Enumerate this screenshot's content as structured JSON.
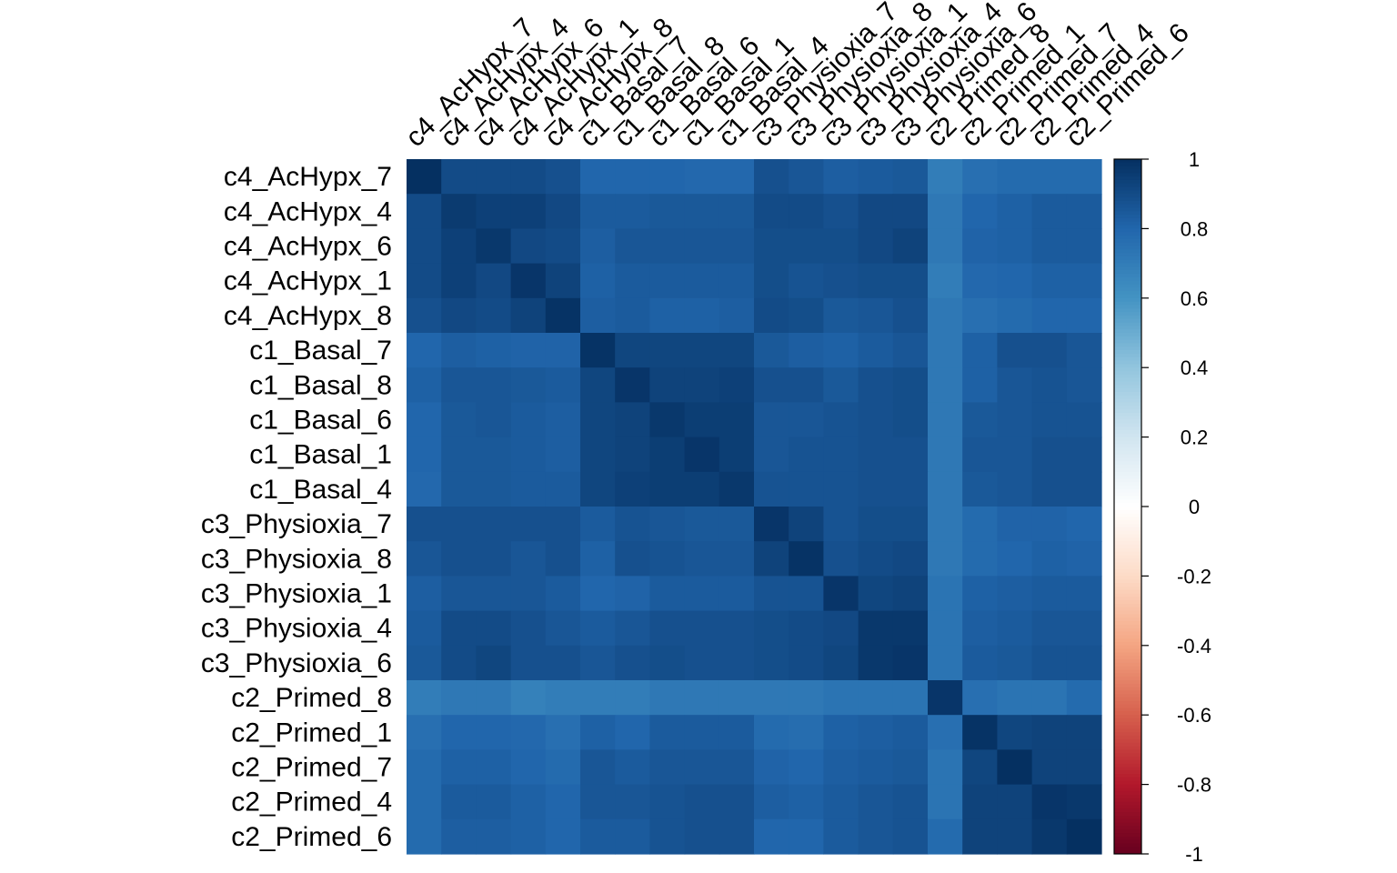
{
  "chart_data": {
    "type": "heatmap",
    "title": "",
    "xlabel": "",
    "ylabel": "",
    "row_labels": [
      "c4_AcHypx_7",
      "c4_AcHypx_4",
      "c4_AcHypx_6",
      "c4_AcHypx_1",
      "c4_AcHypx_8",
      "c1_Basal_7",
      "c1_Basal_8",
      "c1_Basal_6",
      "c1_Basal_1",
      "c1_Basal_4",
      "c3_Physioxia_7",
      "c3_Physioxia_8",
      "c3_Physioxia_1",
      "c3_Physioxia_4",
      "c3_Physioxia_6",
      "c2_Primed_8",
      "c2_Primed_1",
      "c2_Primed_7",
      "c2_Primed_4",
      "c2_Primed_6"
    ],
    "col_labels": [
      "c4_AcHypx_7",
      "c4_AcHypx_4",
      "c4_AcHypx_6",
      "c4_AcHypx_1",
      "c4_AcHypx_8",
      "c1_Basal_7",
      "c1_Basal_8",
      "c1_Basal_6",
      "c1_Basal_1",
      "c1_Basal_4",
      "c3_Physioxia_7",
      "c3_Physioxia_8",
      "c3_Physioxia_1",
      "c3_Physioxia_4",
      "c3_Physioxia_6",
      "c2_Primed_8",
      "c2_Primed_1",
      "c2_Primed_7",
      "c2_Primed_4",
      "c2_Primed_6"
    ],
    "values": [
      [
        1.0,
        0.9,
        0.9,
        0.9,
        0.88,
        0.8,
        0.8,
        0.8,
        0.79,
        0.79,
        0.88,
        0.86,
        0.83,
        0.84,
        0.85,
        0.7,
        0.76,
        0.78,
        0.78,
        0.78
      ],
      [
        0.9,
        0.96,
        0.94,
        0.94,
        0.91,
        0.84,
        0.84,
        0.85,
        0.85,
        0.85,
        0.9,
        0.9,
        0.88,
        0.91,
        0.91,
        0.72,
        0.8,
        0.82,
        0.84,
        0.84
      ],
      [
        0.9,
        0.94,
        0.97,
        0.91,
        0.9,
        0.83,
        0.86,
        0.86,
        0.86,
        0.86,
        0.89,
        0.89,
        0.89,
        0.91,
        0.93,
        0.72,
        0.81,
        0.82,
        0.84,
        0.84
      ],
      [
        0.9,
        0.94,
        0.91,
        0.98,
        0.93,
        0.82,
        0.84,
        0.84,
        0.84,
        0.84,
        0.89,
        0.87,
        0.88,
        0.89,
        0.89,
        0.7,
        0.79,
        0.8,
        0.82,
        0.82
      ],
      [
        0.88,
        0.91,
        0.9,
        0.93,
        0.99,
        0.83,
        0.84,
        0.82,
        0.82,
        0.83,
        0.9,
        0.89,
        0.85,
        0.86,
        0.88,
        0.72,
        0.76,
        0.78,
        0.8,
        0.8
      ],
      [
        0.8,
        0.83,
        0.82,
        0.81,
        0.81,
        0.99,
        0.92,
        0.92,
        0.92,
        0.92,
        0.85,
        0.83,
        0.82,
        0.84,
        0.86,
        0.72,
        0.82,
        0.88,
        0.88,
        0.86
      ],
      [
        0.82,
        0.86,
        0.86,
        0.85,
        0.84,
        0.92,
        0.98,
        0.93,
        0.93,
        0.94,
        0.88,
        0.88,
        0.85,
        0.88,
        0.89,
        0.72,
        0.82,
        0.86,
        0.87,
        0.86
      ],
      [
        0.8,
        0.85,
        0.86,
        0.84,
        0.83,
        0.92,
        0.93,
        0.97,
        0.95,
        0.95,
        0.86,
        0.86,
        0.87,
        0.88,
        0.89,
        0.72,
        0.85,
        0.86,
        0.87,
        0.87
      ],
      [
        0.8,
        0.85,
        0.85,
        0.84,
        0.83,
        0.92,
        0.93,
        0.95,
        0.98,
        0.95,
        0.86,
        0.87,
        0.87,
        0.88,
        0.88,
        0.72,
        0.86,
        0.86,
        0.88,
        0.88
      ],
      [
        0.79,
        0.85,
        0.85,
        0.84,
        0.84,
        0.92,
        0.94,
        0.95,
        0.95,
        0.97,
        0.87,
        0.87,
        0.87,
        0.88,
        0.88,
        0.72,
        0.85,
        0.86,
        0.88,
        0.88
      ],
      [
        0.88,
        0.88,
        0.88,
        0.88,
        0.88,
        0.84,
        0.87,
        0.86,
        0.85,
        0.85,
        0.98,
        0.93,
        0.87,
        0.89,
        0.89,
        0.72,
        0.78,
        0.81,
        0.81,
        0.8
      ],
      [
        0.86,
        0.88,
        0.88,
        0.86,
        0.88,
        0.82,
        0.88,
        0.87,
        0.86,
        0.86,
        0.93,
        0.99,
        0.88,
        0.9,
        0.91,
        0.72,
        0.78,
        0.8,
        0.82,
        0.81
      ],
      [
        0.83,
        0.86,
        0.86,
        0.86,
        0.84,
        0.8,
        0.81,
        0.84,
        0.84,
        0.84,
        0.87,
        0.87,
        0.98,
        0.92,
        0.93,
        0.74,
        0.82,
        0.83,
        0.84,
        0.84
      ],
      [
        0.84,
        0.9,
        0.9,
        0.88,
        0.86,
        0.84,
        0.86,
        0.88,
        0.88,
        0.88,
        0.89,
        0.9,
        0.91,
        0.97,
        0.97,
        0.74,
        0.83,
        0.84,
        0.86,
        0.86
      ],
      [
        0.85,
        0.9,
        0.92,
        0.88,
        0.88,
        0.86,
        0.88,
        0.89,
        0.88,
        0.88,
        0.89,
        0.9,
        0.92,
        0.97,
        0.98,
        0.74,
        0.84,
        0.85,
        0.87,
        0.87
      ],
      [
        0.7,
        0.72,
        0.72,
        0.68,
        0.7,
        0.7,
        0.7,
        0.72,
        0.72,
        0.72,
        0.72,
        0.72,
        0.74,
        0.74,
        0.74,
        0.98,
        0.76,
        0.74,
        0.74,
        0.78
      ],
      [
        0.76,
        0.8,
        0.8,
        0.79,
        0.76,
        0.82,
        0.8,
        0.84,
        0.84,
        0.84,
        0.78,
        0.77,
        0.82,
        0.83,
        0.84,
        0.76,
        0.99,
        0.92,
        0.93,
        0.93
      ],
      [
        0.78,
        0.82,
        0.82,
        0.8,
        0.78,
        0.86,
        0.84,
        0.86,
        0.86,
        0.86,
        0.81,
        0.8,
        0.83,
        0.84,
        0.85,
        0.74,
        0.92,
        1.0,
        0.93,
        0.93
      ],
      [
        0.78,
        0.84,
        0.84,
        0.82,
        0.8,
        0.86,
        0.86,
        0.87,
        0.88,
        0.88,
        0.83,
        0.82,
        0.84,
        0.86,
        0.87,
        0.74,
        0.93,
        0.93,
        0.98,
        0.97
      ],
      [
        0.78,
        0.83,
        0.83,
        0.82,
        0.8,
        0.84,
        0.84,
        0.87,
        0.88,
        0.88,
        0.8,
        0.8,
        0.84,
        0.86,
        0.87,
        0.78,
        0.93,
        0.93,
        0.97,
        1.0
      ]
    ],
    "zlim": [
      -1,
      1
    ],
    "legend": {
      "position": "right",
      "ticks": [
        {
          "value": 1,
          "label": "1"
        },
        {
          "value": 0.8,
          "label": "0.8"
        },
        {
          "value": 0.6,
          "label": "0.6"
        },
        {
          "value": 0.4,
          "label": "0.4"
        },
        {
          "value": 0.2,
          "label": "0.2"
        },
        {
          "value": 0,
          "label": "0"
        },
        {
          "value": -0.2,
          "label": "-0.2"
        },
        {
          "value": -0.4,
          "label": "-0.4"
        },
        {
          "value": -0.6,
          "label": "-0.6"
        },
        {
          "value": -0.8,
          "label": "-0.8"
        },
        {
          "value": -1,
          "label": "-1"
        }
      ]
    },
    "colorscale": [
      [
        -1.0,
        "#67001f"
      ],
      [
        -0.8,
        "#b2182b"
      ],
      [
        -0.6,
        "#d6604d"
      ],
      [
        -0.4,
        "#f4a582"
      ],
      [
        -0.2,
        "#fddbc7"
      ],
      [
        0.0,
        "#ffffff"
      ],
      [
        0.2,
        "#d1e5f0"
      ],
      [
        0.4,
        "#92c5de"
      ],
      [
        0.6,
        "#4393c3"
      ],
      [
        0.8,
        "#2166ac"
      ],
      [
        1.0,
        "#053061"
      ]
    ]
  }
}
